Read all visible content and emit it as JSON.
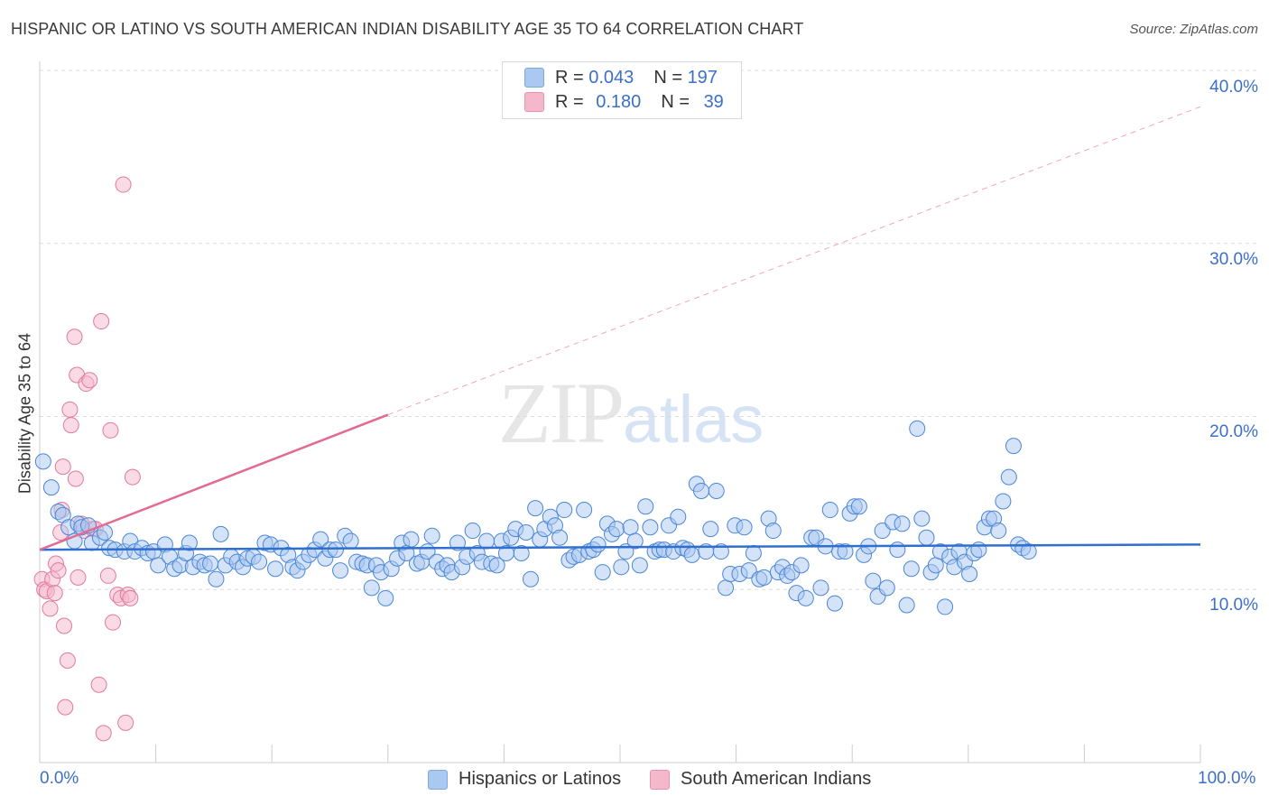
{
  "title": "HISPANIC OR LATINO VS SOUTH AMERICAN INDIAN DISABILITY AGE 35 TO 64 CORRELATION CHART",
  "source": "Source: ZipAtlas.com",
  "watermark": {
    "zip": "ZIP",
    "atlas": "atlas"
  },
  "legend": {
    "rows": [
      {
        "r_label": "R =",
        "r_value": "0.043",
        "n_label": "N =",
        "n_value": "197",
        "color": "#aac8f0"
      },
      {
        "r_label": "R =",
        "r_value": "0.180",
        "n_label": "N =",
        "n_value": "39",
        "color": "#f5b8cb"
      }
    ]
  },
  "bottom_legend": [
    {
      "label": "Hispanics or Latinos",
      "color": "#aac8f0"
    },
    {
      "label": "South American Indians",
      "color": "#f5b8cb"
    }
  ],
  "axis": {
    "x_min_label": "0.0%",
    "x_max_label": "100.0%",
    "y_title": "Disability Age 35 to 64",
    "y_ticks": [
      "10.0%",
      "20.0%",
      "30.0%",
      "40.0%"
    ]
  },
  "chart_data": {
    "type": "scatter",
    "title": "HISPANIC OR LATINO VS SOUTH AMERICAN INDIAN DISABILITY AGE 35 TO 64 CORRELATION CHART",
    "xlabel": "",
    "ylabel": "Disability Age 35 to 64",
    "xlim": [
      0,
      100
    ],
    "ylim": [
      0,
      40
    ],
    "grid": true,
    "legend_position": "top-center",
    "series": [
      {
        "name": "Hispanics or Latinos",
        "color": "#4a86d8",
        "fill": "#aac8f0",
        "trend": {
          "x": [
            0,
            100
          ],
          "y": [
            12.3,
            12.6
          ],
          "color": "#2f6fcf"
        },
        "points": [
          [
            0.3,
            17.4
          ],
          [
            1.0,
            15.9
          ],
          [
            1.6,
            14.5
          ],
          [
            2.0,
            14.3
          ],
          [
            2.5,
            13.6
          ],
          [
            3.0,
            12.8
          ],
          [
            3.3,
            13.8
          ],
          [
            3.6,
            13.6
          ],
          [
            4.2,
            13.7
          ],
          [
            4.5,
            12.7
          ],
          [
            5.2,
            13.0
          ],
          [
            5.6,
            13.3
          ],
          [
            6.0,
            12.4
          ],
          [
            6.5,
            12.3
          ],
          [
            7.3,
            12.2
          ],
          [
            7.8,
            12.8
          ],
          [
            8.2,
            12.2
          ],
          [
            8.8,
            12.4
          ],
          [
            9.3,
            12.1
          ],
          [
            9.8,
            12.2
          ],
          [
            10.2,
            11.4
          ],
          [
            10.8,
            12.6
          ],
          [
            11.2,
            11.9
          ],
          [
            11.6,
            11.2
          ],
          [
            12.1,
            11.4
          ],
          [
            12.6,
            12.1
          ],
          [
            12.9,
            12.7
          ],
          [
            13.2,
            11.3
          ],
          [
            13.8,
            11.6
          ],
          [
            14.2,
            11.4
          ],
          [
            14.7,
            11.5
          ],
          [
            15.2,
            10.6
          ],
          [
            15.6,
            13.2
          ],
          [
            16.0,
            11.4
          ],
          [
            16.5,
            11.9
          ],
          [
            17.0,
            11.6
          ],
          [
            17.5,
            11.3
          ],
          [
            17.9,
            11.8
          ],
          [
            18.4,
            11.9
          ],
          [
            18.9,
            11.6
          ],
          [
            19.4,
            12.7
          ],
          [
            19.9,
            12.6
          ],
          [
            20.3,
            11.2
          ],
          [
            20.8,
            12.4
          ],
          [
            21.4,
            12.0
          ],
          [
            21.8,
            11.3
          ],
          [
            22.2,
            11.1
          ],
          [
            22.7,
            11.6
          ],
          [
            23.2,
            12.0
          ],
          [
            23.7,
            12.3
          ],
          [
            24.2,
            12.9
          ],
          [
            24.6,
            11.8
          ],
          [
            25.0,
            12.3
          ],
          [
            25.5,
            12.3
          ],
          [
            25.9,
            11.1
          ],
          [
            26.3,
            13.1
          ],
          [
            26.8,
            12.8
          ],
          [
            27.3,
            11.6
          ],
          [
            27.8,
            11.5
          ],
          [
            28.2,
            11.4
          ],
          [
            28.6,
            10.1
          ],
          [
            29.0,
            11.4
          ],
          [
            29.4,
            11.0
          ],
          [
            29.8,
            9.5
          ],
          [
            30.3,
            11.2
          ],
          [
            30.8,
            11.8
          ],
          [
            31.2,
            12.7
          ],
          [
            31.6,
            12.1
          ],
          [
            32.0,
            12.9
          ],
          [
            32.5,
            11.5
          ],
          [
            32.9,
            11.6
          ],
          [
            33.4,
            12.2
          ],
          [
            33.8,
            13.1
          ],
          [
            34.2,
            11.6
          ],
          [
            34.7,
            11.2
          ],
          [
            35.1,
            11.4
          ],
          [
            35.5,
            11.0
          ],
          [
            36.0,
            12.7
          ],
          [
            36.4,
            11.3
          ],
          [
            36.8,
            11.9
          ],
          [
            37.3,
            13.4
          ],
          [
            37.7,
            12.1
          ],
          [
            38.1,
            11.6
          ],
          [
            38.5,
            12.8
          ],
          [
            38.9,
            11.5
          ],
          [
            39.4,
            11.4
          ],
          [
            39.8,
            12.8
          ],
          [
            40.2,
            12.1
          ],
          [
            40.6,
            13.0
          ],
          [
            41.0,
            13.5
          ],
          [
            41.5,
            12.1
          ],
          [
            41.9,
            13.3
          ],
          [
            42.3,
            10.6
          ],
          [
            42.7,
            14.7
          ],
          [
            43.1,
            12.9
          ],
          [
            43.5,
            13.5
          ],
          [
            44.0,
            14.2
          ],
          [
            44.4,
            13.7
          ],
          [
            44.8,
            13.0
          ],
          [
            45.2,
            14.6
          ],
          [
            45.6,
            11.7
          ],
          [
            46.0,
            11.9
          ],
          [
            46.5,
            12.0
          ],
          [
            46.9,
            14.6
          ],
          [
            47.3,
            12.2
          ],
          [
            47.7,
            12.3
          ],
          [
            48.1,
            12.6
          ],
          [
            48.5,
            11.0
          ],
          [
            48.9,
            13.8
          ],
          [
            49.3,
            13.2
          ],
          [
            49.7,
            13.5
          ],
          [
            50.1,
            11.3
          ],
          [
            50.5,
            12.2
          ],
          [
            50.9,
            13.6
          ],
          [
            51.3,
            12.8
          ],
          [
            51.7,
            11.4
          ],
          [
            52.2,
            14.8
          ],
          [
            52.6,
            13.6
          ],
          [
            53.0,
            12.2
          ],
          [
            53.4,
            12.3
          ],
          [
            53.8,
            12.3
          ],
          [
            54.2,
            13.7
          ],
          [
            54.6,
            12.2
          ],
          [
            55.0,
            14.2
          ],
          [
            55.4,
            12.4
          ],
          [
            55.8,
            12.3
          ],
          [
            56.2,
            12.0
          ],
          [
            56.6,
            16.1
          ],
          [
            57.0,
            15.7
          ],
          [
            57.4,
            12.2
          ],
          [
            57.8,
            13.5
          ],
          [
            58.3,
            15.7
          ],
          [
            58.7,
            12.2
          ],
          [
            59.1,
            10.1
          ],
          [
            59.5,
            10.9
          ],
          [
            59.9,
            13.7
          ],
          [
            60.3,
            10.9
          ],
          [
            60.7,
            13.6
          ],
          [
            61.1,
            11.1
          ],
          [
            61.5,
            12.1
          ],
          [
            62.0,
            10.6
          ],
          [
            62.4,
            10.7
          ],
          [
            62.8,
            14.1
          ],
          [
            63.2,
            13.4
          ],
          [
            63.6,
            11.0
          ],
          [
            64.0,
            11.3
          ],
          [
            64.4,
            10.8
          ],
          [
            64.8,
            11.0
          ],
          [
            65.2,
            9.8
          ],
          [
            65.6,
            11.4
          ],
          [
            66.0,
            9.5
          ],
          [
            66.5,
            13.0
          ],
          [
            66.9,
            13.0
          ],
          [
            67.3,
            10.1
          ],
          [
            67.7,
            12.5
          ],
          [
            68.1,
            14.6
          ],
          [
            68.5,
            9.2
          ],
          [
            68.9,
            12.2
          ],
          [
            69.4,
            12.2
          ],
          [
            69.8,
            14.4
          ],
          [
            70.2,
            14.8
          ],
          [
            70.6,
            14.8
          ],
          [
            71.0,
            12.0
          ],
          [
            71.4,
            12.5
          ],
          [
            71.8,
            10.5
          ],
          [
            72.2,
            9.6
          ],
          [
            72.6,
            13.4
          ],
          [
            73.0,
            10.1
          ],
          [
            73.5,
            13.9
          ],
          [
            73.9,
            12.3
          ],
          [
            74.3,
            13.8
          ],
          [
            74.7,
            9.1
          ],
          [
            75.1,
            11.2
          ],
          [
            75.6,
            19.3
          ],
          [
            76.0,
            14.1
          ],
          [
            76.4,
            13.0
          ],
          [
            76.8,
            11.0
          ],
          [
            77.2,
            11.4
          ],
          [
            77.6,
            12.2
          ],
          [
            78.0,
            9.0
          ],
          [
            78.4,
            11.9
          ],
          [
            78.8,
            11.3
          ],
          [
            79.2,
            12.2
          ],
          [
            79.7,
            11.6
          ],
          [
            80.1,
            10.9
          ],
          [
            80.5,
            12.1
          ],
          [
            80.9,
            12.3
          ],
          [
            81.4,
            13.6
          ],
          [
            81.8,
            14.1
          ],
          [
            82.2,
            14.1
          ],
          [
            82.6,
            13.4
          ],
          [
            83.0,
            15.1
          ],
          [
            83.5,
            16.5
          ],
          [
            83.9,
            18.3
          ],
          [
            84.3,
            12.6
          ],
          [
            84.7,
            12.4
          ],
          [
            85.2,
            12.2
          ]
        ]
      },
      {
        "name": "South American Indians",
        "color": "#e07a9c",
        "fill": "#f5b8cb",
        "trend": {
          "x": [
            0,
            30
          ],
          "y": [
            12.3,
            20.1
          ],
          "x_dashed": [
            30,
            100
          ],
          "y_dashed": [
            20.1,
            37.9
          ],
          "color": "#e26a95"
        },
        "points": [
          [
            0.2,
            10.6
          ],
          [
            0.4,
            10.0
          ],
          [
            0.6,
            9.9
          ],
          [
            0.9,
            8.9
          ],
          [
            1.1,
            10.6
          ],
          [
            1.3,
            9.8
          ],
          [
            1.4,
            11.5
          ],
          [
            1.6,
            11.1
          ],
          [
            1.8,
            13.3
          ],
          [
            1.9,
            14.6
          ],
          [
            2.0,
            17.1
          ],
          [
            2.1,
            7.9
          ],
          [
            2.2,
            3.2
          ],
          [
            2.4,
            5.9
          ],
          [
            2.6,
            20.4
          ],
          [
            2.7,
            19.5
          ],
          [
            3.0,
            24.6
          ],
          [
            3.1,
            16.4
          ],
          [
            3.2,
            22.4
          ],
          [
            3.3,
            10.7
          ],
          [
            3.6,
            13.8
          ],
          [
            3.8,
            13.4
          ],
          [
            4.0,
            21.9
          ],
          [
            4.3,
            22.1
          ],
          [
            4.6,
            13.5
          ],
          [
            4.8,
            13.5
          ],
          [
            5.1,
            4.5
          ],
          [
            5.3,
            25.5
          ],
          [
            5.5,
            1.7
          ],
          [
            5.9,
            10.8
          ],
          [
            6.1,
            19.2
          ],
          [
            6.3,
            8.1
          ],
          [
            6.7,
            9.7
          ],
          [
            7.0,
            9.5
          ],
          [
            7.2,
            33.4
          ],
          [
            7.4,
            2.3
          ],
          [
            7.6,
            9.7
          ],
          [
            7.8,
            9.5
          ],
          [
            8.0,
            16.5
          ]
        ]
      }
    ]
  }
}
